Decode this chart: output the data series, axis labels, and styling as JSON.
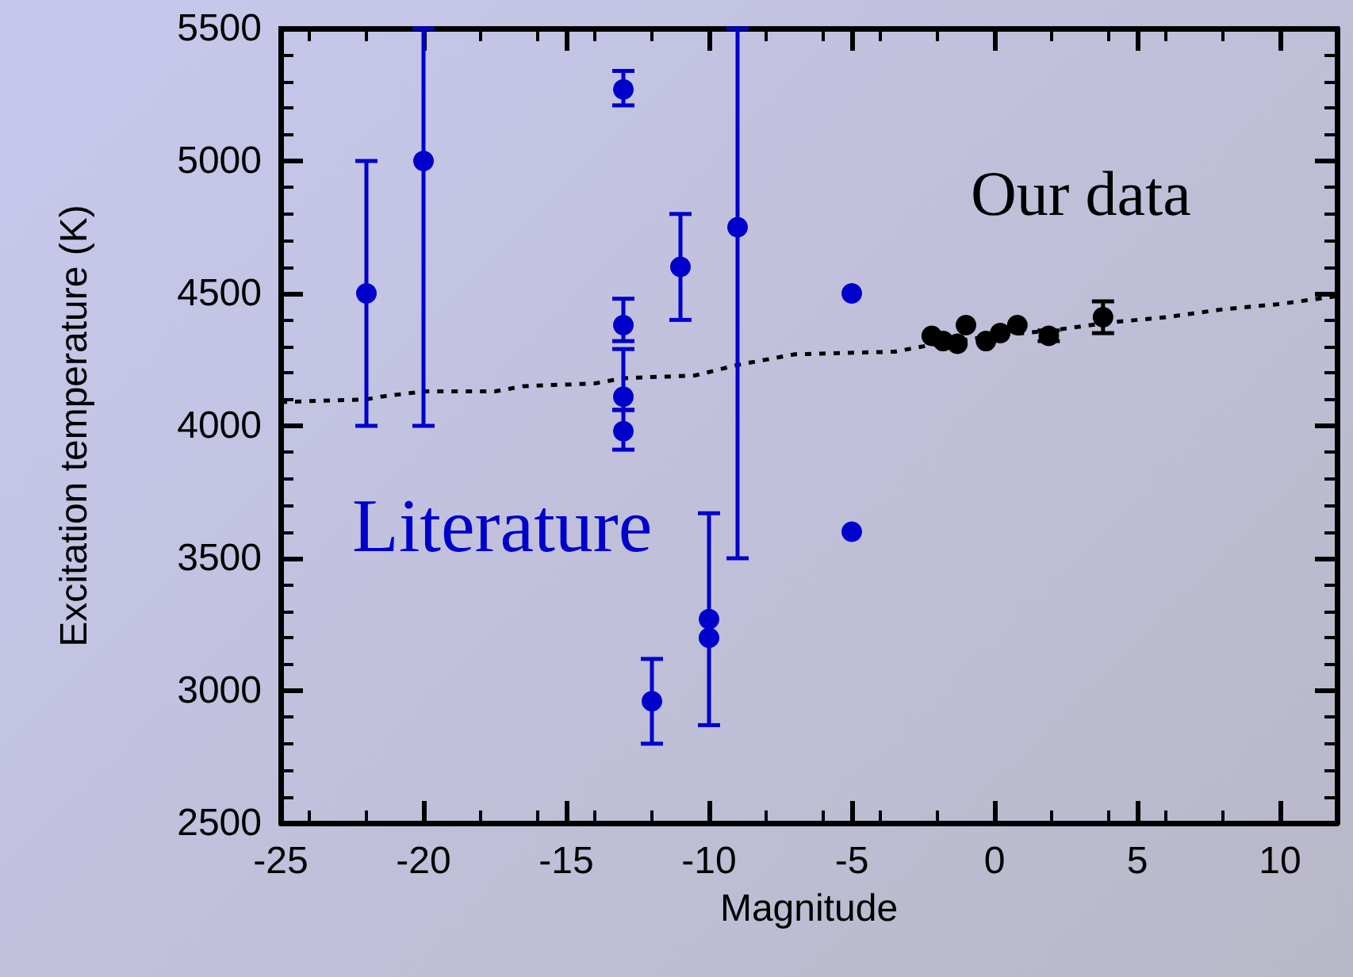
{
  "chart_data": {
    "type": "scatter",
    "xlabel": "Magnitude",
    "ylabel": "Excitation temperature (K)",
    "xlim": [
      -25,
      12
    ],
    "xticks": [
      -25,
      -20,
      -15,
      -10,
      -5,
      0,
      5,
      10
    ],
    "ylim": [
      2500,
      5500
    ],
    "yticks": [
      2500,
      3000,
      3500,
      4000,
      4500,
      5000,
      5500
    ],
    "grid": false,
    "marker": "circle",
    "annotations": [
      "Literature",
      "Our data"
    ],
    "series": [
      {
        "color": "#0000cc",
        "x": [
          -22,
          -20,
          -13,
          -13,
          -13,
          -13,
          -11,
          -9,
          -12,
          -10,
          -10,
          -5,
          -5
        ],
        "values": [
          4500,
          5000,
          5270,
          4380,
          4110,
          3980,
          4600,
          4750,
          2960,
          3270,
          3200,
          4500,
          3600
        ],
        "errors": [
          [
            4000,
            5000
          ],
          [
            4000,
            5500
          ],
          [
            5210,
            5340
          ],
          [
            4320,
            4480
          ],
          [
            4060,
            4290
          ],
          [
            3910,
            4060
          ],
          [
            4400,
            4800
          ],
          [
            3500,
            5500
          ],
          [
            2800,
            3120
          ],
          [
            2870,
            3670
          ],
          null,
          null,
          null
        ]
      },
      {
        "color": "#000000",
        "x": [
          -2.2,
          -1.8,
          -1.3,
          -1.0,
          -0.3,
          0.2,
          0.8,
          1.9,
          3.8
        ],
        "values": [
          4340,
          4320,
          4310,
          4380,
          4320,
          4350,
          4380,
          4340,
          4410
        ],
        "errors": [
          null,
          null,
          null,
          null,
          null,
          null,
          null,
          [
            4320,
            4360
          ],
          [
            4350,
            4470
          ]
        ]
      },
      {
        "type": "line",
        "color": "#000000",
        "marker": "none",
        "line_style": "dashed",
        "x": [
          -25,
          -22,
          -21.5,
          -20,
          -17.5,
          -16.5,
          -14,
          -13,
          -10.5,
          -9,
          -7,
          -3.5,
          -2,
          0,
          2,
          4,
          6,
          8,
          10,
          12
        ],
        "values": [
          4090,
          4100,
          4110,
          4130,
          4130,
          4150,
          4160,
          4180,
          4190,
          4230,
          4270,
          4280,
          4310,
          4340,
          4360,
          4390,
          4410,
          4440,
          4460,
          4490
        ]
      }
    ]
  }
}
